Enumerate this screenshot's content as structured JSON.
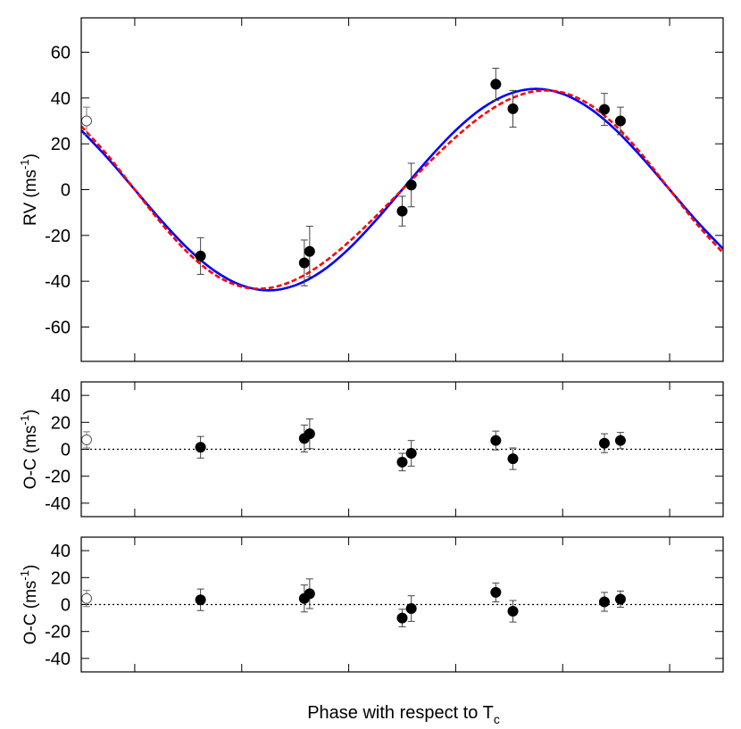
{
  "chart_data": [
    {
      "type": "scatter",
      "panel": "rv",
      "ylabel": "RV (ms",
      "ylabel_sup": "-1",
      "ylabel_close": ")",
      "xlim": [
        -0.1,
        1.1
      ],
      "ylim": [
        -75,
        75
      ],
      "yticks": [
        -60,
        -40,
        -20,
        0,
        20,
        40,
        60
      ],
      "xticks": [
        0,
        0.2,
        0.4,
        0.6,
        0.8,
        1.0
      ],
      "x_tick_labels_shown": false,
      "points": [
        {
          "x": -0.09,
          "y": 30,
          "err": 6,
          "open": true
        },
        {
          "x": 0.123,
          "y": -29,
          "err": 8
        },
        {
          "x": 0.317,
          "y": -32,
          "err": 10
        },
        {
          "x": 0.327,
          "y": -27,
          "err": 11
        },
        {
          "x": 0.5,
          "y": -9.4,
          "err": 6.5
        },
        {
          "x": 0.517,
          "y": 2,
          "err": 9.5
        },
        {
          "x": 0.675,
          "y": 46,
          "err": 7
        },
        {
          "x": 0.707,
          "y": 35.3,
          "err": 8
        },
        {
          "x": 0.878,
          "y": 35,
          "err": 7
        },
        {
          "x": 0.908,
          "y": 30,
          "err": 6
        }
      ],
      "models": [
        {
          "color": "#0000ff",
          "style": "solid",
          "x": [
            -0.1,
            -0.05,
            0,
            0.05,
            0.1,
            0.15,
            0.2,
            0.25,
            0.3,
            0.35,
            0.4,
            0.45,
            0.5,
            0.55,
            0.6,
            0.65,
            0.7,
            0.75,
            0.8,
            0.85,
            0.9,
            0.95,
            1.0,
            1.05,
            1.1
          ],
          "y": [
            25.9,
            13.6,
            0,
            -13.6,
            -25.9,
            -35.6,
            -41.8,
            -44,
            -41.8,
            -35.6,
            -25.9,
            -13.6,
            0,
            13.6,
            25.9,
            35.6,
            41.8,
            44,
            41.8,
            35.6,
            25.9,
            13.6,
            0,
            -13.6,
            -25.9
          ]
        },
        {
          "color": "#ff0000",
          "style": "dashed",
          "x": [
            -0.1,
            -0.05,
            0,
            0.05,
            0.1,
            0.15,
            0.2,
            0.25,
            0.3,
            0.35,
            0.4,
            0.45,
            0.5,
            0.55,
            0.6,
            0.65,
            0.7,
            0.75,
            0.8,
            0.85,
            0.9,
            0.95,
            1.0,
            1.05,
            1.1
          ],
          "y": [
            27.7,
            14.8,
            0,
            -14.8,
            -27.7,
            -37.2,
            -42.4,
            -43,
            -39.4,
            -32.4,
            -22.9,
            -11.8,
            0,
            11.8,
            22.9,
            32.4,
            39.4,
            43,
            42.4,
            37.2,
            27.7,
            14.8,
            0,
            -14.8,
            -27.7
          ]
        }
      ]
    },
    {
      "type": "scatter",
      "panel": "residuals-1",
      "ylabel": "O-C (ms",
      "ylabel_sup": "-1",
      "ylabel_close": ")",
      "xlim": [
        -0.1,
        1.1
      ],
      "ylim": [
        -50,
        50
      ],
      "yticks": [
        -40,
        -20,
        0,
        20,
        40
      ],
      "xticks": [
        0,
        0.2,
        0.4,
        0.6,
        0.8,
        1.0
      ],
      "zero_line": true,
      "points": [
        {
          "x": -0.09,
          "y": 7,
          "err": 6,
          "open": true
        },
        {
          "x": 0.123,
          "y": 1.5,
          "err": 8
        },
        {
          "x": 0.317,
          "y": 8,
          "err": 10
        },
        {
          "x": 0.327,
          "y": 11.5,
          "err": 11
        },
        {
          "x": 0.5,
          "y": -9.5,
          "err": 6.5
        },
        {
          "x": 0.517,
          "y": -3,
          "err": 9.5
        },
        {
          "x": 0.675,
          "y": 6.5,
          "err": 7
        },
        {
          "x": 0.707,
          "y": -7,
          "err": 8
        },
        {
          "x": 0.878,
          "y": 4.5,
          "err": 7
        },
        {
          "x": 0.908,
          "y": 6.5,
          "err": 6
        }
      ]
    },
    {
      "type": "scatter",
      "panel": "residuals-2",
      "ylabel": "O-C (ms",
      "ylabel_sup": "-1",
      "ylabel_close": ")",
      "xlim": [
        -0.1,
        1.1
      ],
      "ylim": [
        -50,
        50
      ],
      "yticks": [
        -40,
        -20,
        0,
        20,
        40
      ],
      "xticks": [
        0,
        0.2,
        0.4,
        0.6,
        0.8,
        1.0
      ],
      "zero_line": true,
      "xlabel": "Phase with respect to T",
      "xlabel_sub": "c",
      "points": [
        {
          "x": -0.09,
          "y": 4.5,
          "err": 6,
          "open": true
        },
        {
          "x": 0.123,
          "y": 3.5,
          "err": 8
        },
        {
          "x": 0.317,
          "y": 4.5,
          "err": 10
        },
        {
          "x": 0.327,
          "y": 8,
          "err": 11
        },
        {
          "x": 0.5,
          "y": -10,
          "err": 6.5
        },
        {
          "x": 0.517,
          "y": -3,
          "err": 9.5
        },
        {
          "x": 0.675,
          "y": 9,
          "err": 7
        },
        {
          "x": 0.707,
          "y": -5,
          "err": 8
        },
        {
          "x": 0.878,
          "y": 2,
          "err": 7
        },
        {
          "x": 0.908,
          "y": 4,
          "err": 6
        }
      ]
    }
  ]
}
